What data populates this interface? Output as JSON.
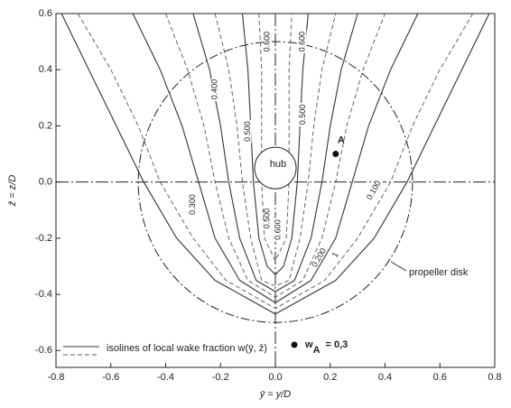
{
  "chart_data": {
    "type": "contour",
    "xlabel": "ȳ = y/D",
    "ylabel": "z̄ = z/D",
    "xlim": [
      -0.8,
      0.8
    ],
    "ylim": [
      -0.66,
      0.6
    ],
    "xticks": [
      -0.8,
      -0.6,
      -0.4,
      -0.2,
      {
        "value": 0,
        "label": "0.0"
      },
      0.2,
      0.4,
      0.6,
      0.8
    ],
    "yticks": [
      -0.6,
      -0.4,
      -0.2,
      {
        "value": 0,
        "label": "0.0"
      },
      0.2,
      0.4,
      0.6
    ],
    "disk_radius": 0.5,
    "disk_label": "propeller disk",
    "hub_label": "hub",
    "legend": "isolines of local wake fraction w(ȳ, z̄)",
    "contours": [
      {
        "style": "solid",
        "x": [
          -0.78,
          -0.68,
          -0.58,
          -0.48,
          -0.36,
          -0.22,
          0,
          0.22,
          0.36,
          0.48,
          0.58,
          0.68,
          0.78
        ],
        "y": [
          0.6,
          0.4,
          0.2,
          0,
          -0.2,
          -0.35,
          -0.47,
          -0.35,
          -0.2,
          0,
          0.2,
          0.4,
          0.6
        ]
      },
      {
        "style": "dashed",
        "x": [
          -0.72,
          -0.6,
          -0.5,
          -0.42,
          -0.3,
          -0.18,
          0,
          0.18,
          0.3,
          0.42,
          0.5,
          0.6,
          0.72
        ],
        "y": [
          0.6,
          0.4,
          0.2,
          0,
          -0.2,
          -0.35,
          -0.45,
          -0.35,
          -0.2,
          0,
          0.2,
          0.4,
          0.6
        ]
      },
      {
        "style": "solid",
        "x": [
          -0.52,
          -0.42,
          -0.34,
          -0.28,
          -0.22,
          -0.13,
          0,
          0.13,
          0.22,
          0.28,
          0.34,
          0.42,
          0.52
        ],
        "y": [
          0.6,
          0.4,
          0.2,
          0,
          -0.2,
          -0.35,
          -0.43,
          -0.35,
          -0.2,
          0,
          0.2,
          0.4,
          0.6
        ]
      },
      {
        "style": "dashed",
        "x": [
          -0.4,
          -0.32,
          -0.26,
          -0.22,
          -0.17,
          -0.1,
          0,
          0.1,
          0.17,
          0.22,
          0.26,
          0.32,
          0.4
        ],
        "y": [
          0.6,
          0.4,
          0.2,
          0,
          -0.2,
          -0.35,
          -0.41,
          -0.35,
          -0.2,
          0,
          0.2,
          0.4,
          0.6
        ]
      },
      {
        "style": "solid",
        "x": [
          -0.3,
          -0.24,
          -0.2,
          -0.17,
          -0.13,
          -0.07,
          0,
          0.07,
          0.13,
          0.17,
          0.2,
          0.24,
          0.3
        ],
        "y": [
          0.6,
          0.4,
          0.2,
          0,
          -0.2,
          -0.35,
          -0.39,
          -0.35,
          -0.2,
          0,
          0.2,
          0.4,
          0.6
        ]
      },
      {
        "style": "dashed",
        "x": [
          -0.22,
          -0.17,
          -0.14,
          -0.12,
          -0.09,
          -0.05,
          0,
          0.05,
          0.09,
          0.12,
          0.14,
          0.17,
          0.22
        ],
        "y": [
          0.6,
          0.4,
          0.2,
          0,
          -0.2,
          -0.35,
          -0.37,
          -0.35,
          -0.2,
          0,
          0.2,
          0.4,
          0.6
        ]
      },
      {
        "style": "solid",
        "x": [
          -0.12,
          -0.1,
          -0.09,
          -0.08,
          -0.06,
          -0.03,
          0,
          0.03,
          0.06,
          0.08,
          0.09,
          0.1,
          0.12
        ],
        "y": [
          0.6,
          0.4,
          0.2,
          0,
          -0.2,
          -0.3,
          -0.33,
          -0.3,
          -0.2,
          0,
          0.2,
          0.4,
          0.6
        ]
      },
      {
        "style": "dashed",
        "x": [
          -0.06,
          -0.05,
          -0.05,
          -0.05,
          -0.04,
          0,
          0.04,
          0.05,
          0.05,
          0.05,
          0.06
        ],
        "y": [
          0.6,
          0.4,
          0.2,
          0,
          -0.2,
          -0.28,
          -0.2,
          0,
          0.2,
          0.4,
          0.6
        ]
      }
    ],
    "contour_labels": [
      "0.600",
      "0.600",
      "0.400",
      "0.500",
      "0.500",
      "0.300",
      "0.500",
      "0.600",
      "0.200",
      "1",
      "0.100"
    ],
    "points": [
      {
        "name": "A",
        "x": 0.22,
        "y": 0.1
      }
    ],
    "annotation": {
      "symbol": "w",
      "subscript": "A",
      "text": "= 0,3"
    }
  }
}
